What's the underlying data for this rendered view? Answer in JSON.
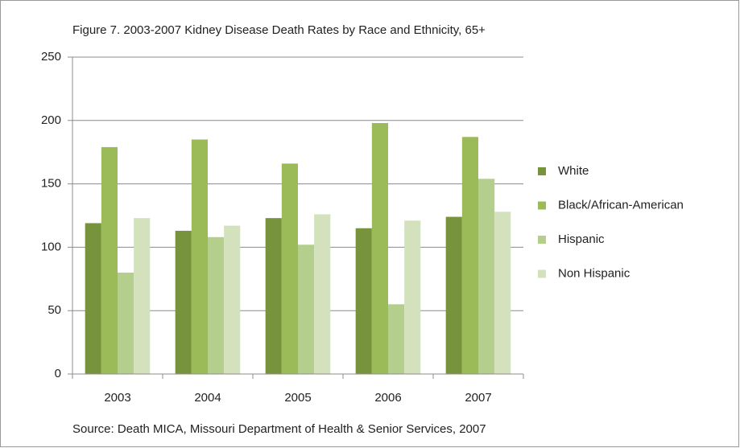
{
  "chart_data": {
    "type": "bar",
    "title": "Figure 7. 2003-2007 Kidney Disease Death Rates by Race and Ethnicity, 65+",
    "source": "Source: Death MICA, Missouri Department of Health & Senior Services, 2007",
    "categories": [
      "2003",
      "2004",
      "2005",
      "2006",
      "2007"
    ],
    "series": [
      {
        "name": "White",
        "color": "#77933c",
        "values": [
          119,
          113,
          123,
          115,
          124
        ]
      },
      {
        "name": "Black/African-American",
        "color": "#9bbb59",
        "values": [
          179,
          185,
          166,
          198,
          187
        ]
      },
      {
        "name": "Hispanic",
        "color": "#b3cf8b",
        "values": [
          80,
          108,
          102,
          55,
          154
        ]
      },
      {
        "name": "Non Hispanic",
        "color": "#d3e2bd",
        "values": [
          123,
          117,
          126,
          121,
          128
        ]
      }
    ],
    "ylim": [
      0,
      250
    ],
    "yticks": [
      0,
      50,
      100,
      150,
      200,
      250
    ],
    "grid": true,
    "legend": "right"
  }
}
